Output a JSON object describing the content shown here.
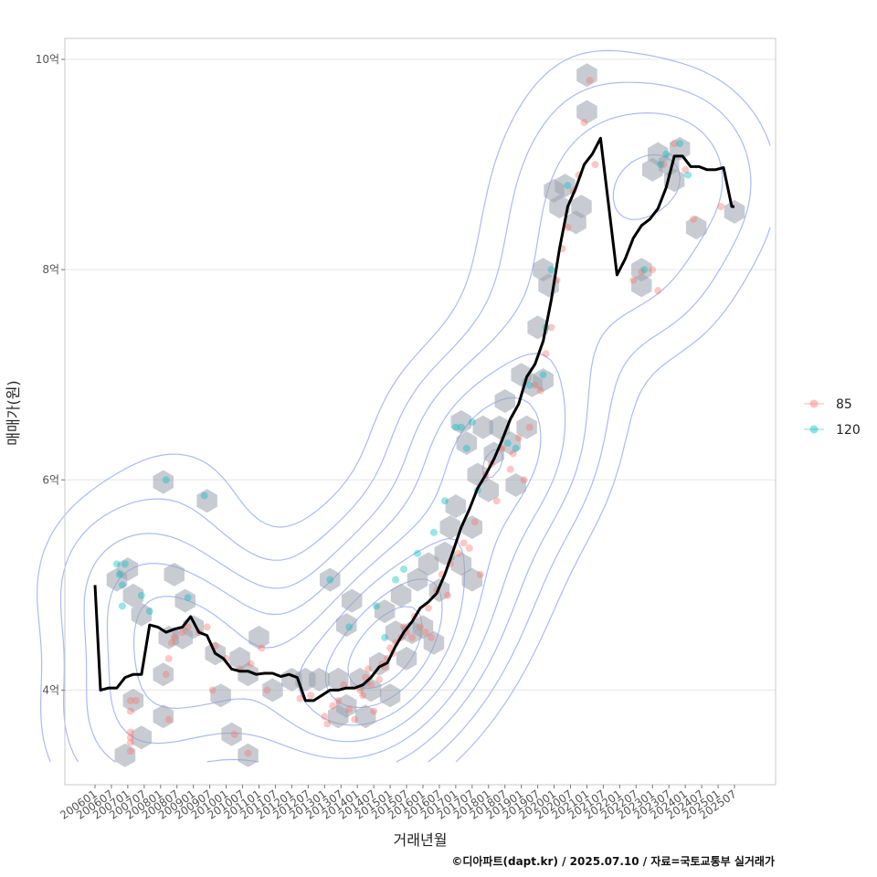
{
  "chart_data": {
    "type": "line",
    "xlabel": "거래년월",
    "ylabel": "매매가(원)",
    "caption": "©디아파트(dapt.kr) / 2025.07.10 / 자료=국토교통부 실거래가",
    "xlim": [
      "2006-01",
      "2025-07"
    ],
    "ylim": [
      3.1,
      10.2
    ],
    "yticks": [
      {
        "value": 4,
        "label": "4억"
      },
      {
        "value": 6,
        "label": "6억"
      },
      {
        "value": 8,
        "label": "8억"
      },
      {
        "value": 10,
        "label": "10억"
      }
    ],
    "xticks": [
      "200601",
      "200607",
      "200701",
      "200707",
      "200801",
      "200807",
      "200901",
      "200907",
      "201001",
      "201007",
      "201101",
      "201107",
      "201201",
      "201207",
      "201301",
      "201307",
      "201401",
      "201407",
      "201501",
      "201507",
      "201601",
      "201607",
      "201701",
      "201707",
      "201801",
      "201807",
      "201901",
      "201907",
      "202001",
      "202007",
      "202101",
      "202107",
      "202201",
      "202207",
      "202301",
      "202307",
      "202401",
      "202407",
      "202501",
      "202507"
    ],
    "legend": {
      "placement": "right",
      "entries": [
        {
          "label": "85",
          "color": "#F8766D"
        },
        {
          "label": "120",
          "color": "#00BFC4"
        }
      ]
    },
    "colors": {
      "trend": "#000000",
      "hex": "#9aa3ad",
      "contour": "#8ea4f0",
      "grid": "#e6e6e6"
    },
    "trend_line": {
      "x": [
        "2006-01",
        "2006-03",
        "2006-06",
        "2006-09",
        "2006-12",
        "2007-03",
        "2007-06",
        "2007-09",
        "2007-12",
        "2008-03",
        "2008-06",
        "2008-09",
        "2008-12",
        "2009-03",
        "2009-06",
        "2009-09",
        "2009-12",
        "2010-03",
        "2010-06",
        "2010-09",
        "2010-12",
        "2011-03",
        "2011-06",
        "2011-09",
        "2011-12",
        "2012-03",
        "2012-06",
        "2012-09",
        "2012-12",
        "2013-03",
        "2013-06",
        "2013-09",
        "2013-12",
        "2014-03",
        "2014-06",
        "2014-09",
        "2014-12",
        "2015-03",
        "2015-06",
        "2015-09",
        "2015-12",
        "2016-03",
        "2016-06",
        "2016-09",
        "2016-12",
        "2017-03",
        "2017-06",
        "2017-09",
        "2017-12",
        "2018-03",
        "2018-06",
        "2018-09",
        "2018-12",
        "2019-03",
        "2019-06",
        "2019-09",
        "2019-12",
        "2020-03",
        "2020-06",
        "2020-09",
        "2020-12",
        "2021-03",
        "2021-06",
        "2021-09",
        "2021-12",
        "2022-03",
        "2022-06",
        "2022-09",
        "2022-12",
        "2023-03",
        "2023-06",
        "2023-09",
        "2023-12",
        "2024-03",
        "2024-06",
        "2024-09",
        "2024-12",
        "2025-03",
        "2025-06",
        "2025-07"
      ],
      "y": [
        5.0,
        4.0,
        4.02,
        4.02,
        4.12,
        4.15,
        4.15,
        4.62,
        4.6,
        4.55,
        4.58,
        4.6,
        4.7,
        4.55,
        4.52,
        4.35,
        4.3,
        4.2,
        4.18,
        4.18,
        4.15,
        4.16,
        4.16,
        4.13,
        4.15,
        4.12,
        3.9,
        3.9,
        3.95,
        4.0,
        4.0,
        4.02,
        4.02,
        4.05,
        4.12,
        4.22,
        4.26,
        4.42,
        4.55,
        4.65,
        4.78,
        4.84,
        4.92,
        5.1,
        5.32,
        5.55,
        5.72,
        5.92,
        6.05,
        6.2,
        6.38,
        6.58,
        6.72,
        6.98,
        7.1,
        7.32,
        7.72,
        8.2,
        8.6,
        8.78,
        9.0,
        9.1,
        9.25,
        8.6,
        7.95,
        8.1,
        8.3,
        8.42,
        8.48,
        8.58,
        8.78,
        9.08,
        9.08,
        8.98,
        8.98,
        8.95,
        8.95,
        8.97,
        8.6,
        8.6
      ]
    },
    "series": [
      {
        "name": "85",
        "color": "#F8766D",
        "points": [
          [
            "2007-02",
            3.6
          ],
          [
            "2007-02",
            3.55
          ],
          [
            "2007-02",
            3.5
          ],
          [
            "2007-02",
            3.42
          ],
          [
            "2007-02",
            3.9
          ],
          [
            "2007-02",
            3.8
          ],
          [
            "2007-04",
            3.9
          ],
          [
            "2008-03",
            4.15
          ],
          [
            "2008-04",
            4.3
          ],
          [
            "2008-05",
            4.45
          ],
          [
            "2008-06",
            4.5
          ],
          [
            "2008-04",
            3.72
          ],
          [
            "2008-09",
            4.55
          ],
          [
            "2008-11",
            4.6
          ],
          [
            "2009-03",
            4.55
          ],
          [
            "2009-06",
            4.6
          ],
          [
            "2009-08",
            4.0
          ],
          [
            "2009-09",
            4.42
          ],
          [
            "2010-01",
            4.3
          ],
          [
            "2010-04",
            3.58
          ],
          [
            "2010-06",
            4.2
          ],
          [
            "2010-09",
            3.4
          ],
          [
            "2010-10",
            4.25
          ],
          [
            "2011-02",
            4.4
          ],
          [
            "2011-04",
            4.0
          ],
          [
            "2012-04",
            3.92
          ],
          [
            "2012-08",
            3.95
          ],
          [
            "2013-01",
            3.75
          ],
          [
            "2013-02",
            3.68
          ],
          [
            "2013-04",
            3.85
          ],
          [
            "2013-06",
            3.9
          ],
          [
            "2013-08",
            4.05
          ],
          [
            "2013-10",
            3.82
          ],
          [
            "2013-12",
            3.72
          ],
          [
            "2014-02",
            4.0
          ],
          [
            "2014-03",
            3.95
          ],
          [
            "2014-04",
            4.12
          ],
          [
            "2014-05",
            4.2
          ],
          [
            "2014-06",
            4.05
          ],
          [
            "2014-07",
            3.8
          ],
          [
            "2014-09",
            4.1
          ],
          [
            "2014-10",
            4.25
          ],
          [
            "2014-11",
            4.22
          ],
          [
            "2014-12",
            4.3
          ],
          [
            "2015-01",
            4.4
          ],
          [
            "2015-02",
            4.35
          ],
          [
            "2015-03",
            4.45
          ],
          [
            "2015-05",
            4.5
          ],
          [
            "2015-06",
            4.6
          ],
          [
            "2015-07",
            4.55
          ],
          [
            "2015-09",
            4.5
          ],
          [
            "2015-10",
            4.7
          ],
          [
            "2015-12",
            4.6
          ],
          [
            "2016-02",
            4.55
          ],
          [
            "2016-03",
            4.78
          ],
          [
            "2016-04",
            4.5
          ],
          [
            "2016-06",
            4.95
          ],
          [
            "2016-08",
            5.1
          ],
          [
            "2016-10",
            4.9
          ],
          [
            "2016-11",
            5.2
          ],
          [
            "2017-02",
            5.3
          ],
          [
            "2017-04",
            5.4
          ],
          [
            "2017-06",
            5.35
          ],
          [
            "2017-08",
            5.6
          ],
          [
            "2017-10",
            5.1
          ],
          [
            "2017-12",
            6.05
          ],
          [
            "2018-02",
            6.15
          ],
          [
            "2018-04",
            5.8
          ],
          [
            "2018-06",
            6.3
          ],
          [
            "2018-09",
            6.1
          ],
          [
            "2018-10",
            6.25
          ],
          [
            "2018-12",
            6.4
          ],
          [
            "2019-02",
            6.0
          ],
          [
            "2019-04",
            6.5
          ],
          [
            "2019-06",
            6.9
          ],
          [
            "2019-08",
            6.85
          ],
          [
            "2019-10",
            7.2
          ],
          [
            "2019-12",
            7.45
          ],
          [
            "2020-02",
            7.9
          ],
          [
            "2020-04",
            8.2
          ],
          [
            "2020-06",
            8.4
          ],
          [
            "2020-08",
            8.75
          ],
          [
            "2020-10",
            8.9
          ],
          [
            "2020-12",
            9.4
          ],
          [
            "2021-02",
            9.8
          ],
          [
            "2021-04",
            9.0
          ],
          [
            "2022-06",
            7.9
          ],
          [
            "2022-09",
            7.98
          ],
          [
            "2023-01",
            8.0
          ],
          [
            "2023-03",
            7.8
          ],
          [
            "2023-05",
            9.0
          ],
          [
            "2023-09",
            9.2
          ],
          [
            "2024-01",
            8.95
          ],
          [
            "2024-04",
            8.48
          ],
          [
            "2025-02",
            8.6
          ]
        ]
      },
      {
        "name": "120",
        "color": "#00BFC4",
        "points": [
          [
            "2006-09",
            5.2
          ],
          [
            "2006-10",
            5.1
          ],
          [
            "2006-11",
            5.0
          ],
          [
            "2006-11",
            4.8
          ],
          [
            "2006-12",
            5.2
          ],
          [
            "2007-06",
            4.9
          ],
          [
            "2007-09",
            4.75
          ],
          [
            "2008-03",
            6.0
          ],
          [
            "2008-11",
            4.88
          ],
          [
            "2009-05",
            5.85
          ],
          [
            "2013-03",
            5.05
          ],
          [
            "2013-10",
            4.6
          ],
          [
            "2014-08",
            4.8
          ],
          [
            "2014-11",
            4.5
          ],
          [
            "2015-03",
            5.05
          ],
          [
            "2015-06",
            5.15
          ],
          [
            "2015-11",
            5.3
          ],
          [
            "2016-05",
            5.5
          ],
          [
            "2016-09",
            5.8
          ],
          [
            "2017-01",
            6.5
          ],
          [
            "2017-03",
            6.5
          ],
          [
            "2017-05",
            6.3
          ],
          [
            "2017-07",
            6.55
          ],
          [
            "2017-09",
            5.9
          ],
          [
            "2018-08",
            6.35
          ],
          [
            "2018-11",
            6.3
          ],
          [
            "2019-04",
            6.9
          ],
          [
            "2019-09",
            7.0
          ],
          [
            "2019-10",
            7.45
          ],
          [
            "2019-12",
            8.0
          ],
          [
            "2020-06",
            8.8
          ],
          [
            "2022-10",
            8.0
          ],
          [
            "2023-04",
            9.0
          ],
          [
            "2023-06",
            9.1
          ],
          [
            "2023-11",
            9.2
          ],
          [
            "2024-02",
            8.9
          ]
        ]
      }
    ],
    "hexbins": [
      [
        "2006-09",
        5.05
      ],
      [
        "2007-01",
        5.15
      ],
      [
        "2007-03",
        4.9
      ],
      [
        "2007-06",
        4.72
      ],
      [
        "2007-03",
        3.9
      ],
      [
        "2007-06",
        3.55
      ],
      [
        "2006-12",
        3.38
      ],
      [
        "2008-02",
        5.98
      ],
      [
        "2008-06",
        5.1
      ],
      [
        "2008-10",
        4.85
      ],
      [
        "2008-04",
        4.5
      ],
      [
        "2008-09",
        4.5
      ],
      [
        "2008-02",
        4.15
      ],
      [
        "2009-01",
        4.6
      ],
      [
        "2008-02",
        3.75
      ],
      [
        "2009-06",
        5.8
      ],
      [
        "2009-09",
        4.35
      ],
      [
        "2009-11",
        3.95
      ],
      [
        "2010-06",
        4.3
      ],
      [
        "2010-09",
        4.15
      ],
      [
        "2011-01",
        4.5
      ],
      [
        "2011-06",
        4.0
      ],
      [
        "2010-03",
        3.58
      ],
      [
        "2010-09",
        3.38
      ],
      [
        "2012-01",
        4.1
      ],
      [
        "2012-06",
        4.1
      ],
      [
        "2012-11",
        4.1
      ],
      [
        "2013-03",
        5.05
      ],
      [
        "2013-06",
        3.75
      ],
      [
        "2013-06",
        4.1
      ],
      [
        "2013-09",
        3.85
      ],
      [
        "2013-09",
        4.62
      ],
      [
        "2013-11",
        4.85
      ],
      [
        "2014-02",
        4.1
      ],
      [
        "2014-04",
        3.75
      ],
      [
        "2014-06",
        4.0
      ],
      [
        "2014-09",
        4.25
      ],
      [
        "2014-11",
        4.75
      ],
      [
        "2015-01",
        3.95
      ],
      [
        "2015-03",
        4.55
      ],
      [
        "2015-05",
        4.9
      ],
      [
        "2015-07",
        4.3
      ],
      [
        "2015-09",
        4.55
      ],
      [
        "2015-11",
        5.05
      ],
      [
        "2016-01",
        4.6
      ],
      [
        "2016-03",
        5.2
      ],
      [
        "2016-05",
        4.45
      ],
      [
        "2016-07",
        4.95
      ],
      [
        "2016-09",
        5.3
      ],
      [
        "2016-11",
        5.55
      ],
      [
        "2017-01",
        5.75
      ],
      [
        "2017-03",
        6.55
      ],
      [
        "2017-03",
        5.2
      ],
      [
        "2017-05",
        6.35
      ],
      [
        "2017-07",
        5.55
      ],
      [
        "2017-09",
        6.05
      ],
      [
        "2017-07",
        5.05
      ],
      [
        "2017-11",
        6.5
      ],
      [
        "2018-01",
        5.9
      ],
      [
        "2018-03",
        6.25
      ],
      [
        "2018-05",
        6.5
      ],
      [
        "2018-07",
        6.75
      ],
      [
        "2018-09",
        6.35
      ],
      [
        "2018-11",
        5.95
      ],
      [
        "2019-01",
        7.0
      ],
      [
        "2019-03",
        6.5
      ],
      [
        "2019-05",
        6.9
      ],
      [
        "2019-07",
        7.45
      ],
      [
        "2019-09",
        6.95
      ],
      [
        "2019-09",
        8.0
      ],
      [
        "2019-11",
        7.85
      ],
      [
        "2020-01",
        8.75
      ],
      [
        "2020-03",
        8.6
      ],
      [
        "2020-05",
        8.8
      ],
      [
        "2020-09",
        8.45
      ],
      [
        "2020-11",
        8.6
      ],
      [
        "2021-01",
        9.85
      ],
      [
        "2021-01",
        9.5
      ],
      [
        "2022-09",
        7.85
      ],
      [
        "2022-09",
        8.0
      ],
      [
        "2023-01",
        8.95
      ],
      [
        "2023-03",
        9.1
      ],
      [
        "2023-07",
        9.0
      ],
      [
        "2023-09",
        8.85
      ],
      [
        "2023-11",
        9.15
      ],
      [
        "2024-05",
        8.4
      ],
      [
        "2025-07",
        8.55
      ]
    ]
  }
}
